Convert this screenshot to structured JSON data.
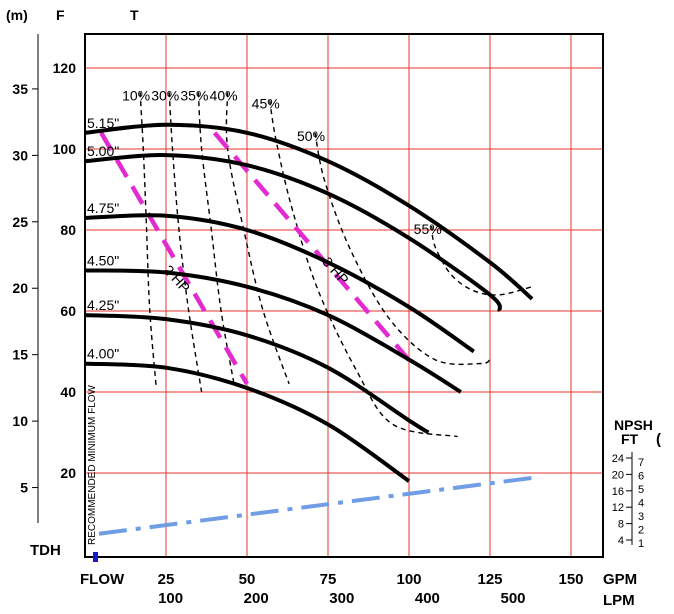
{
  "chart_data": {
    "type": "line",
    "title": "",
    "x_axis_gpm": {
      "unit": "GPM",
      "ticks": [
        25,
        50,
        75,
        100,
        125,
        150
      ],
      "range": [
        0,
        150
      ]
    },
    "x_axis_lpm": {
      "unit": "LPM",
      "ticks": [
        100,
        200,
        300,
        400,
        500
      ]
    },
    "x_label": "FLOW",
    "y_axis_ft": {
      "unit": "F",
      "ticks": [
        20,
        40,
        60,
        80,
        100,
        120
      ],
      "range": [
        0,
        130
      ]
    },
    "y_axis_m": {
      "unit": "(m)",
      "ticks": [
        5,
        10,
        15,
        20,
        25,
        30,
        35
      ]
    },
    "y_header_extra": "T",
    "y_label": "TDH",
    "npsh_axis": {
      "title": "NPSH",
      "subtitle": "FT",
      "paren": "(",
      "ft_ticks": [
        4,
        8,
        12,
        16,
        20,
        24
      ],
      "m_ticks": [
        1,
        2,
        3,
        4,
        5,
        6,
        7
      ]
    },
    "recommended_min_flow_label": "RECOMMENDED MINIMUM FLOW",
    "grid": true,
    "impeller_series": [
      {
        "name": "5.15\"",
        "points": [
          [
            0,
            104
          ],
          [
            25,
            106
          ],
          [
            50,
            104
          ],
          [
            75,
            97
          ],
          [
            100,
            86
          ],
          [
            125,
            72
          ],
          [
            138,
            63
          ]
        ]
      },
      {
        "name": "5.00\"",
        "points": [
          [
            0,
            97
          ],
          [
            25,
            98.5
          ],
          [
            50,
            96
          ],
          [
            75,
            89
          ],
          [
            100,
            78
          ],
          [
            125,
            64
          ],
          [
            128,
            60
          ]
        ]
      },
      {
        "name": "4.75\"",
        "points": [
          [
            0,
            83
          ],
          [
            25,
            83.5
          ],
          [
            50,
            80
          ],
          [
            75,
            72
          ],
          [
            100,
            61
          ],
          [
            120,
            50
          ]
        ]
      },
      {
        "name": "4.50\"",
        "points": [
          [
            0,
            70
          ],
          [
            25,
            69.5
          ],
          [
            50,
            66
          ],
          [
            75,
            59
          ],
          [
            100,
            48
          ],
          [
            116,
            40
          ]
        ]
      },
      {
        "name": "4.25\"",
        "points": [
          [
            0,
            59
          ],
          [
            25,
            58
          ],
          [
            50,
            54
          ],
          [
            75,
            46
          ],
          [
            100,
            33
          ],
          [
            106,
            30
          ]
        ]
      },
      {
        "name": "4.00\"",
        "points": [
          [
            0,
            47
          ],
          [
            25,
            46
          ],
          [
            50,
            41
          ],
          [
            75,
            32
          ],
          [
            100,
            18
          ]
        ]
      }
    ],
    "efficiency_series": [
      {
        "name": "10%",
        "points": [
          [
            17,
            114
          ],
          [
            18,
            100
          ],
          [
            19,
            80
          ],
          [
            20,
            60
          ],
          [
            22,
            41
          ]
        ]
      },
      {
        "name": "30%",
        "points": [
          [
            26,
            114
          ],
          [
            27,
            100
          ],
          [
            29,
            80
          ],
          [
            32,
            60
          ],
          [
            36,
            40
          ]
        ]
      },
      {
        "name": "35%",
        "points": [
          [
            35,
            114
          ],
          [
            36,
            100
          ],
          [
            39,
            80
          ],
          [
            42,
            60
          ],
          [
            46,
            42
          ]
        ]
      },
      {
        "name": "40%",
        "points": [
          [
            44,
            114
          ],
          [
            44,
            100
          ],
          [
            49,
            80
          ],
          [
            55,
            60
          ],
          [
            63,
            42
          ]
        ]
      },
      {
        "name": "45%",
        "points": [
          [
            57,
            112
          ],
          [
            59,
            102
          ],
          [
            64,
            85
          ],
          [
            72,
            65
          ],
          [
            84,
            45
          ],
          [
            95,
            32
          ],
          [
            115,
            29
          ]
        ]
      },
      {
        "name": "50%",
        "points": [
          [
            71,
            104
          ],
          [
            74,
            92
          ],
          [
            82,
            75
          ],
          [
            94,
            58
          ],
          [
            108,
            48
          ],
          [
            122,
            47
          ],
          [
            125,
            48
          ]
        ]
      },
      {
        "name": "55%",
        "points": [
          [
            107,
            81
          ],
          [
            108,
            76
          ],
          [
            113,
            69
          ],
          [
            120,
            65
          ],
          [
            128,
            64
          ],
          [
            138,
            66
          ]
        ]
      }
    ],
    "power_series": [
      {
        "name": "2 HP",
        "points": [
          [
            5,
            104
          ],
          [
            50,
            42
          ]
        ]
      },
      {
        "name": "3 HP",
        "points": [
          [
            40,
            104
          ],
          [
            102,
            46
          ]
        ]
      }
    ],
    "npsh_required": {
      "name": "NPSH",
      "points": [
        [
          0,
          5
        ],
        [
          140,
          19
        ]
      ]
    },
    "colors": {
      "grid": "#e8352d",
      "curve": "#000000",
      "power": "#e22ad0",
      "npsh": "#6f9de6",
      "marker": "#1a1acd"
    }
  }
}
